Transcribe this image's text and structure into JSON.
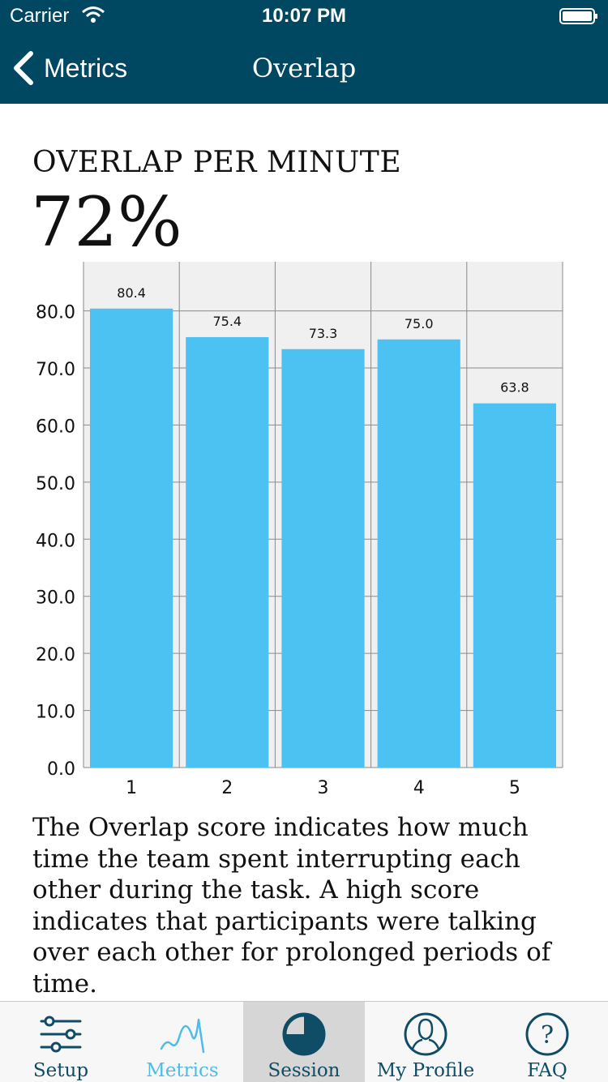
{
  "status_bar": {
    "carrier": "Carrier",
    "time": "10:07 PM"
  },
  "nav": {
    "back_label": "Metrics",
    "title": "Overlap"
  },
  "metric": {
    "title": "OVERLAP PER MINUTE",
    "value": "72%"
  },
  "chart_data": {
    "type": "bar",
    "categories": [
      "1",
      "2",
      "3",
      "4",
      "5"
    ],
    "values": [
      80.4,
      75.4,
      73.3,
      75.0,
      63.8
    ],
    "data_labels": [
      "80.4",
      "75.4",
      "73.3",
      "75.0",
      "63.8"
    ],
    "y_ticks": [
      "0.0",
      "10.0",
      "20.0",
      "30.0",
      "40.0",
      "50.0",
      "60.0",
      "70.0",
      "80.0"
    ],
    "ylim": [
      0,
      88.6
    ],
    "grid": true,
    "bar_color": "#4bc2f1",
    "plot_background": "#f0f0f0",
    "grid_color": "#8a8a8a"
  },
  "description": "The Overlap score indicates how much time the team spent interrupting each other during the task. A high score indicates that participants were talking over each other for prolonged periods of time.",
  "tabs": [
    {
      "label": "Setup",
      "icon": "sliders-icon"
    },
    {
      "label": "Metrics",
      "icon": "wave-chart-icon"
    },
    {
      "label": "Session",
      "icon": "pie-chart-icon"
    },
    {
      "label": "My Profile",
      "icon": "profile-icon"
    },
    {
      "label": "FAQ",
      "icon": "question-icon"
    }
  ],
  "colors": {
    "header": "#004861",
    "accent": "#4dbde8",
    "tab_icon": "#0f4d66",
    "tab_selected_bg": "#d6d6d6"
  }
}
